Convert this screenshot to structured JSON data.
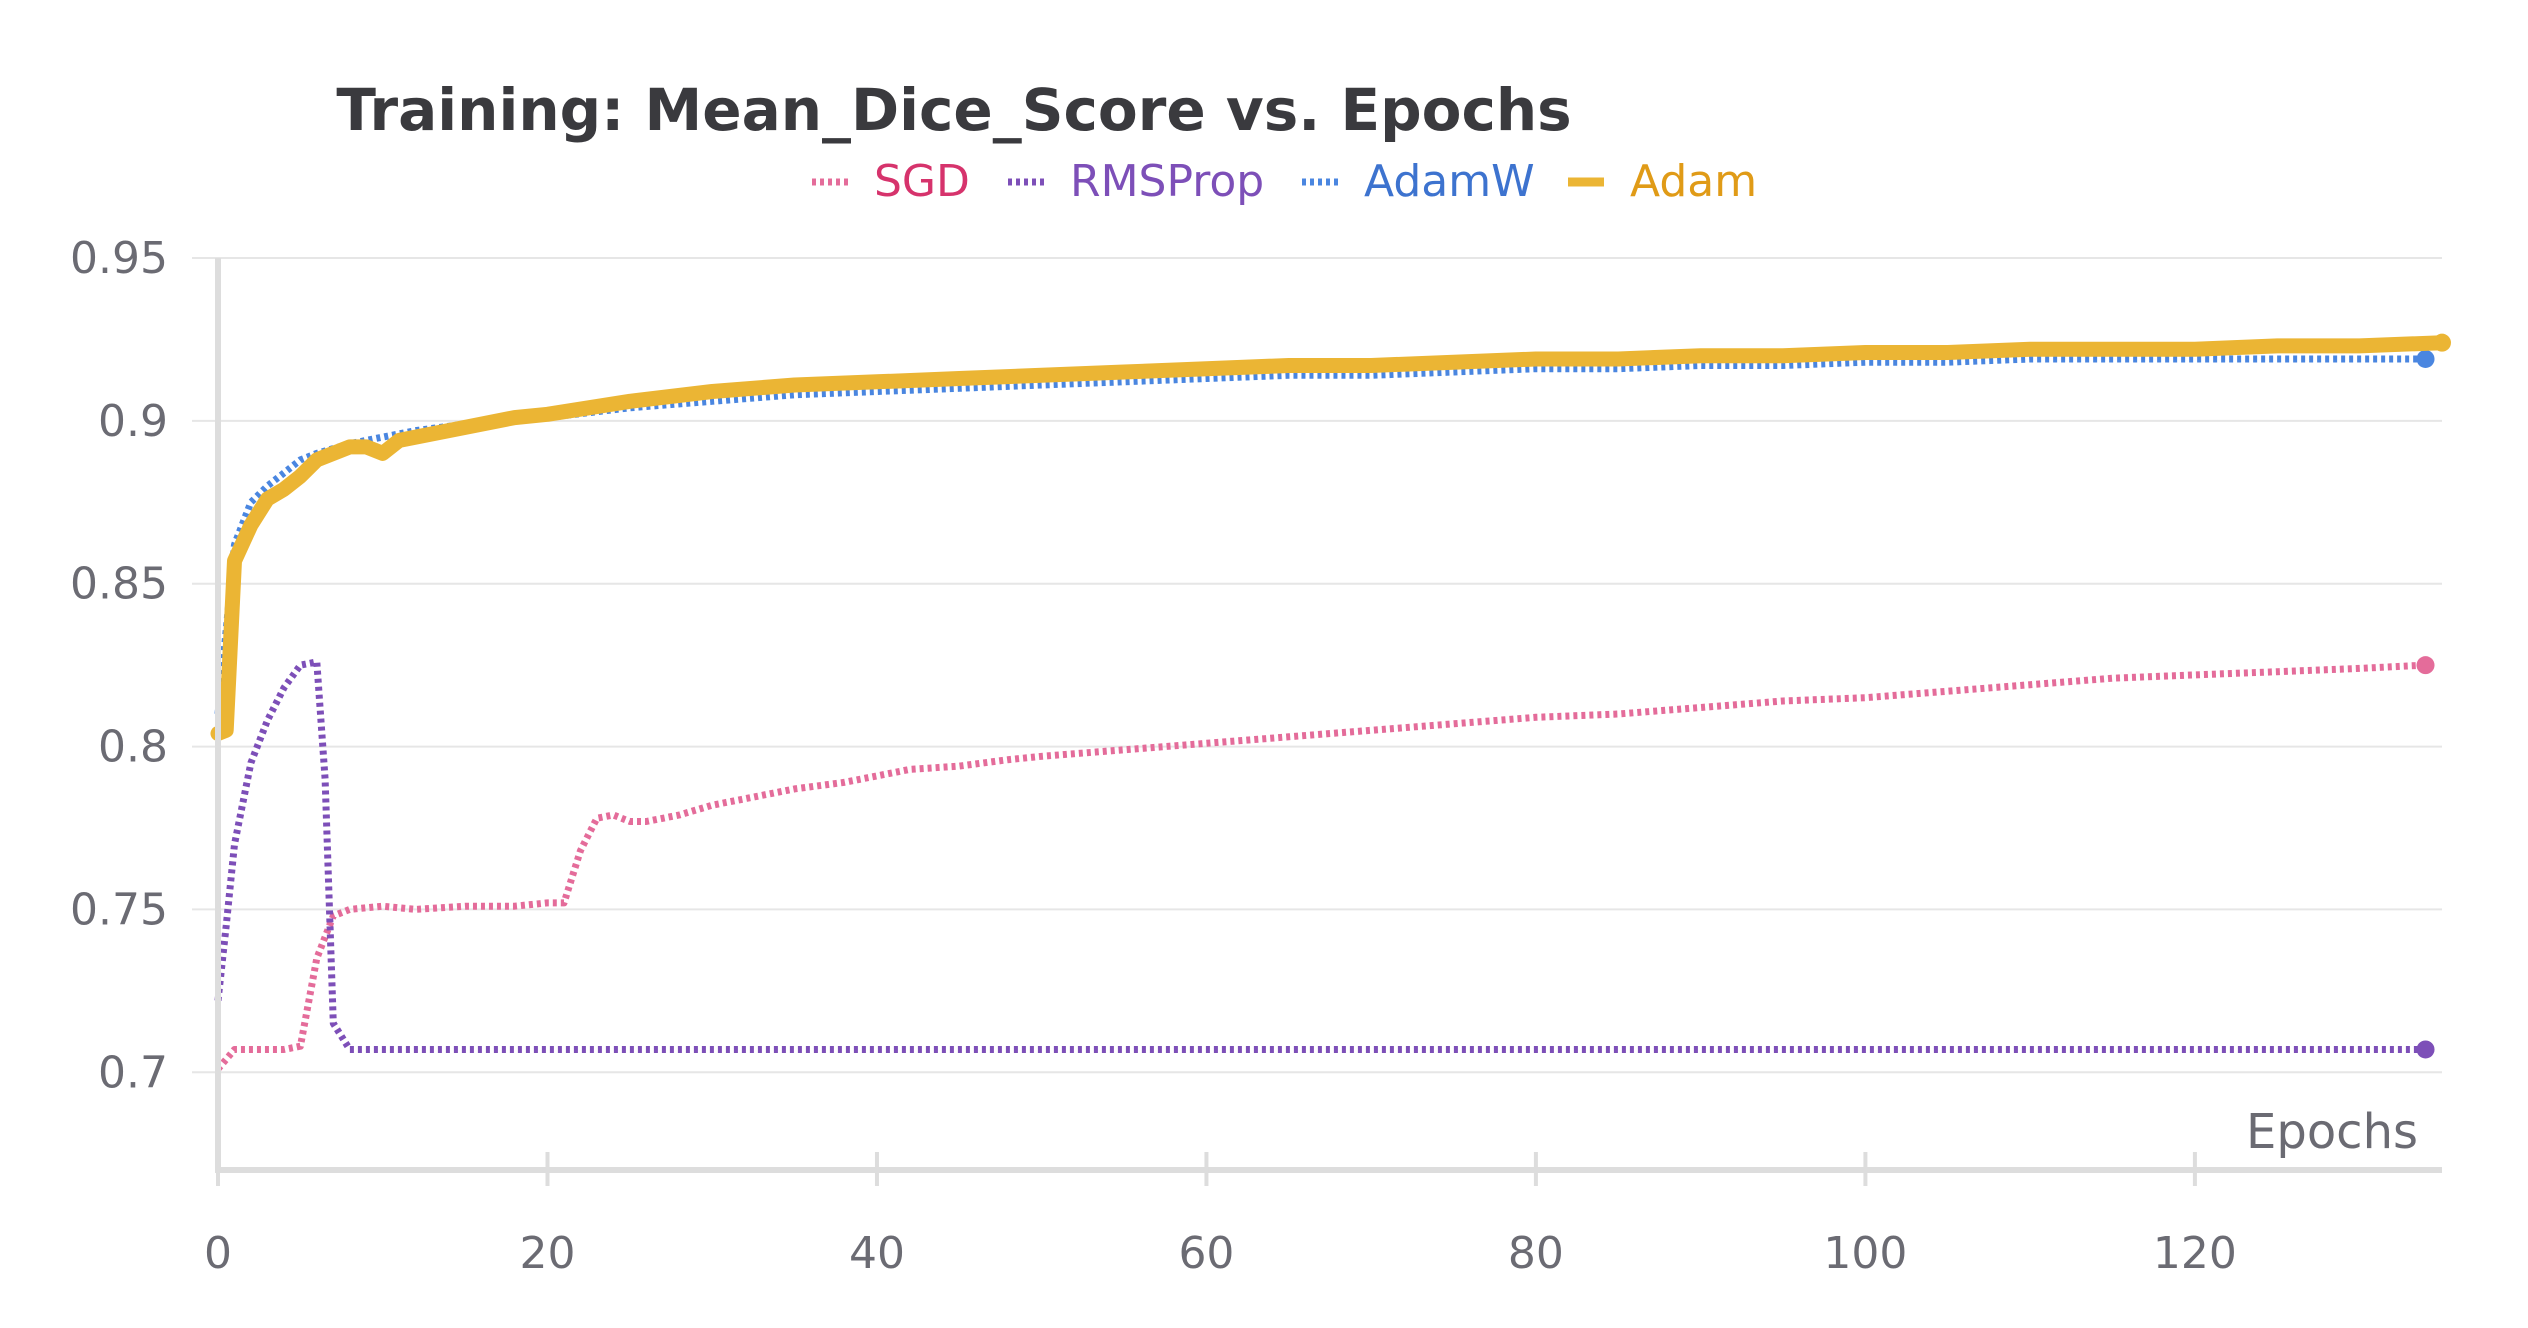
{
  "chart_data": {
    "type": "line",
    "title": "Training: Mean_Dice_Score vs. Epochs",
    "xlabel": "Epochs",
    "ylabel": "",
    "xlim": [
      0,
      135
    ],
    "ylim": [
      0.67,
      0.95
    ],
    "x_ticks": [
      0,
      20,
      40,
      60,
      80,
      100,
      120
    ],
    "y_ticks": [
      0.7,
      0.75,
      0.8,
      0.85,
      0.9,
      0.95
    ],
    "y_tick_labels": [
      "0.7",
      "0.75",
      "0.8",
      "0.85",
      "0.9",
      "0.95"
    ],
    "grid": true,
    "legend_position": "top",
    "series": [
      {
        "name": "SGD",
        "color": "#e46c9a",
        "label_color": "#d6336c",
        "style": "dotted",
        "x": [
          0,
          1,
          2,
          4,
          5,
          6,
          7,
          8,
          10,
          12,
          15,
          18,
          20,
          21,
          22,
          23,
          24,
          25,
          26,
          28,
          30,
          32,
          35,
          38,
          40,
          42,
          45,
          48,
          50,
          55,
          60,
          65,
          70,
          75,
          80,
          85,
          90,
          95,
          100,
          105,
          110,
          115,
          120,
          125,
          130,
          134
        ],
        "values": [
          0.701,
          0.707,
          0.707,
          0.707,
          0.708,
          0.735,
          0.748,
          0.75,
          0.751,
          0.75,
          0.751,
          0.751,
          0.752,
          0.752,
          0.768,
          0.778,
          0.779,
          0.777,
          0.777,
          0.779,
          0.782,
          0.784,
          0.787,
          0.789,
          0.791,
          0.793,
          0.794,
          0.796,
          0.797,
          0.799,
          0.801,
          0.803,
          0.805,
          0.807,
          0.809,
          0.81,
          0.812,
          0.814,
          0.815,
          0.817,
          0.819,
          0.821,
          0.822,
          0.823,
          0.824,
          0.825
        ]
      },
      {
        "name": "RMSProp",
        "color": "#7d4fb8",
        "label_color": "#7d4fb8",
        "style": "dotted",
        "x": [
          0,
          0.5,
          1,
          2,
          3,
          4,
          5,
          6,
          6.5,
          7,
          8,
          9,
          10,
          20,
          40,
          60,
          80,
          100,
          120,
          134
        ],
        "values": [
          0.722,
          0.745,
          0.77,
          0.795,
          0.808,
          0.818,
          0.825,
          0.826,
          0.79,
          0.715,
          0.707,
          0.707,
          0.707,
          0.707,
          0.707,
          0.707,
          0.707,
          0.707,
          0.707,
          0.707
        ]
      },
      {
        "name": "AdamW",
        "color": "#4a86e0",
        "label_color": "#3d73cf",
        "style": "dotted",
        "x": [
          0,
          1,
          2,
          3,
          4,
          5,
          6,
          8,
          10,
          12,
          15,
          18,
          20,
          25,
          30,
          35,
          40,
          45,
          50,
          55,
          60,
          65,
          70,
          75,
          80,
          85,
          90,
          95,
          100,
          105,
          110,
          115,
          120,
          125,
          130,
          134
        ],
        "values": [
          0.81,
          0.862,
          0.875,
          0.88,
          0.884,
          0.888,
          0.89,
          0.893,
          0.895,
          0.897,
          0.899,
          0.9,
          0.901,
          0.904,
          0.906,
          0.908,
          0.909,
          0.91,
          0.911,
          0.912,
          0.913,
          0.914,
          0.914,
          0.915,
          0.916,
          0.916,
          0.917,
          0.917,
          0.918,
          0.918,
          0.919,
          0.919,
          0.919,
          0.919,
          0.919,
          0.919
        ]
      },
      {
        "name": "Adam",
        "color": "#ebb534",
        "label_color": "#e09b17",
        "style": "solid",
        "x": [
          0,
          0.5,
          1,
          2,
          3,
          4,
          5,
          6,
          7,
          8,
          9,
          10,
          11,
          12,
          15,
          18,
          20,
          25,
          30,
          35,
          40,
          45,
          50,
          55,
          60,
          65,
          70,
          75,
          80,
          85,
          90,
          95,
          100,
          105,
          110,
          115,
          120,
          125,
          130,
          135
        ],
        "values": [
          0.804,
          0.805,
          0.857,
          0.868,
          0.876,
          0.879,
          0.883,
          0.888,
          0.89,
          0.892,
          0.892,
          0.89,
          0.894,
          0.895,
          0.898,
          0.901,
          0.902,
          0.906,
          0.909,
          0.911,
          0.912,
          0.913,
          0.914,
          0.915,
          0.916,
          0.917,
          0.917,
          0.918,
          0.919,
          0.919,
          0.92,
          0.92,
          0.921,
          0.921,
          0.922,
          0.922,
          0.922,
          0.923,
          0.923,
          0.924
        ]
      }
    ]
  }
}
